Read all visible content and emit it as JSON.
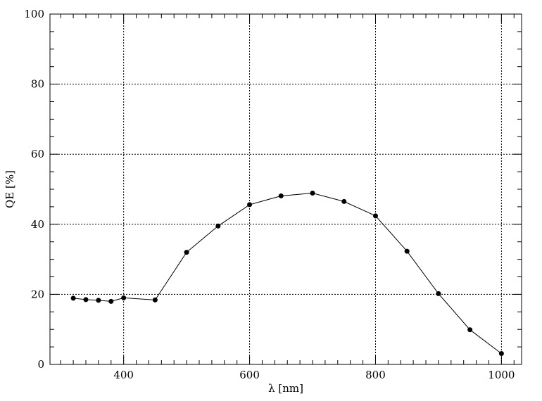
{
  "chart_data": {
    "type": "line",
    "title": "",
    "xlabel": "λ [nm]",
    "ylabel": "QE [%]",
    "xlim": [
      283,
      1032
    ],
    "ylim": [
      0,
      100
    ],
    "x_ticks": [
      400,
      600,
      800,
      1000
    ],
    "y_ticks": [
      0,
      20,
      40,
      60,
      80,
      100
    ],
    "x_minor_step": 20,
    "y_minor_step": 5,
    "grid": true,
    "grid_style": "dotted",
    "legend": "none",
    "line_color": "#000000",
    "marker": "filled-circle",
    "series": [
      {
        "x": [
          320,
          340,
          360,
          380,
          400,
          450,
          500,
          550,
          600,
          650,
          700,
          750,
          800,
          850,
          900,
          950,
          1000
        ],
        "y": [
          18.9,
          18.5,
          18.3,
          18.0,
          19.0,
          18.4,
          32.0,
          39.5,
          45.6,
          48.1,
          48.9,
          46.5,
          42.4,
          32.3,
          20.2,
          9.9,
          3.1
        ]
      }
    ]
  }
}
